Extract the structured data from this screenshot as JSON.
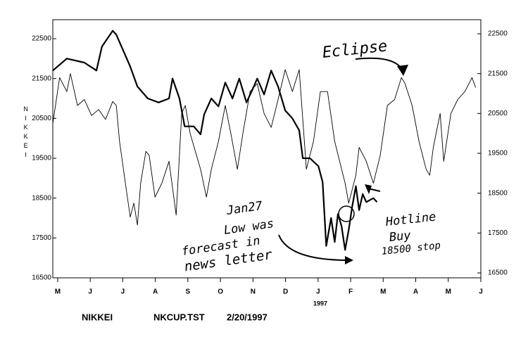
{
  "chart_data": {
    "type": "line",
    "ylabel": "NIKKEI",
    "xlim": [
      -0.15,
      13
    ],
    "xticks": [
      {
        "value": 0,
        "label": "M"
      },
      {
        "value": 1,
        "label": "J"
      },
      {
        "value": 2,
        "label": "J"
      },
      {
        "value": 3,
        "label": "A"
      },
      {
        "value": 4,
        "label": "S"
      },
      {
        "value": 5,
        "label": "O"
      },
      {
        "value": 6,
        "label": "N"
      },
      {
        "value": 7,
        "label": "D"
      },
      {
        "value": 8,
        "label": "J"
      },
      {
        "value": 9,
        "label": "F"
      },
      {
        "value": 10,
        "label": "M"
      },
      {
        "value": 11,
        "label": "A"
      },
      {
        "value": 12,
        "label": "M"
      },
      {
        "value": 13,
        "label": "J"
      }
    ],
    "year_label": "1997",
    "ylim": [
      16500,
      22500
    ],
    "yticks": [
      16500,
      17500,
      18500,
      19500,
      20500,
      21500,
      22500
    ],
    "y2lim": [
      16500,
      22500
    ],
    "y2ticks": [
      16500,
      17500,
      18500,
      19500,
      20500,
      21500,
      22500
    ],
    "series": [
      {
        "color": "#000000",
        "width": 2.2,
        "x": [
          -0.15,
          0.28,
          0.82,
          1.19,
          1.36,
          1.69,
          1.8,
          2.23,
          2.45,
          2.77,
          3.1,
          3.42,
          3.53,
          3.74,
          3.9,
          4.18,
          4.39,
          4.5,
          4.72,
          4.94,
          5.15,
          5.37,
          5.58,
          5.8,
          5.97,
          6.13,
          6.34,
          6.56,
          6.77,
          6.99,
          7.21,
          7.42,
          7.53,
          7.75,
          8.01,
          8.14,
          8.25,
          8.4,
          8.51,
          8.61,
          8.72,
          8.83,
          8.94,
          9.05,
          9.16,
          9.26,
          9.37,
          9.48,
          9.7,
          9.81
        ],
        "values": [
          21700,
          22000,
          21900,
          21700,
          22300,
          22700,
          22600,
          21800,
          21300,
          21000,
          20900,
          21000,
          21500,
          21000,
          20300,
          20300,
          20100,
          20600,
          21000,
          20800,
          21400,
          21000,
          21500,
          20900,
          21200,
          21500,
          21100,
          21700,
          21300,
          20700,
          20500,
          20200,
          19500,
          19500,
          19300,
          18900,
          17300,
          18000,
          17400,
          18100,
          17800,
          17200,
          17700,
          18300,
          18800,
          18200,
          18600,
          18400,
          18500,
          18400
        ]
      },
      {
        "color": "#000000",
        "width": 0.9,
        "axis": "y2",
        "x": [
          -0.15,
          0.06,
          0.28,
          0.39,
          0.61,
          0.82,
          1.04,
          1.26,
          1.47,
          1.69,
          1.8,
          1.9,
          2.08,
          2.23,
          2.34,
          2.45,
          2.55,
          2.71,
          2.81,
          2.99,
          3.2,
          3.42,
          3.64,
          3.81,
          3.92,
          4.07,
          4.39,
          4.57,
          4.72,
          4.94,
          5.15,
          5.32,
          5.52,
          5.69,
          5.91,
          6.13,
          6.34,
          6.56,
          6.77,
          6.99,
          7.21,
          7.42,
          7.53,
          7.64,
          7.86,
          8.07,
          8.29,
          8.51,
          8.83,
          8.94,
          9.16,
          9.26,
          9.48,
          9.7,
          9.91,
          10.13,
          10.35,
          10.56,
          10.67,
          10.89,
          11.1,
          11.32,
          11.43,
          11.54,
          11.75,
          11.86,
          12.08,
          12.29,
          12.51,
          12.73,
          12.84
        ],
        "values": [
          20250,
          21400,
          21050,
          21500,
          20700,
          20850,
          20450,
          20600,
          20350,
          20800,
          20700,
          19800,
          18750,
          17900,
          18250,
          17700,
          18750,
          19550,
          19450,
          18400,
          18750,
          19300,
          17950,
          20500,
          20700,
          20000,
          19100,
          18400,
          19100,
          19800,
          20700,
          20000,
          19100,
          20000,
          21050,
          21250,
          20500,
          20150,
          20850,
          21600,
          21050,
          21600,
          20350,
          19100,
          19800,
          21050,
          21050,
          19800,
          18750,
          18250,
          18950,
          19650,
          19300,
          18750,
          19450,
          20700,
          20850,
          21400,
          21250,
          20700,
          19800,
          19100,
          18950,
          19650,
          20500,
          19300,
          20500,
          20850,
          21050,
          21400,
          21150
        ]
      }
    ],
    "annotations": {
      "eclipse": "Eclipse",
      "jan27": [
        "Jan27",
        "Low was",
        "forecast in",
        "news letter"
      ],
      "hotline": [
        "Hotline",
        "Buy",
        "18500 stop"
      ]
    },
    "footer": [
      "NIKKEI",
      "NKCUP.TST",
      "2/20/1997"
    ]
  }
}
